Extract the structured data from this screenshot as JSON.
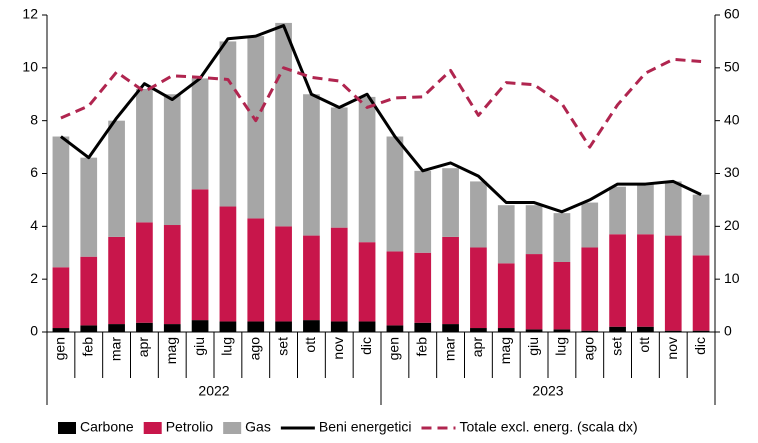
{
  "chart_data": {
    "type": "bar",
    "categories": [
      "gen",
      "feb",
      "mar",
      "apr",
      "mag",
      "giu",
      "lug",
      "ago",
      "set",
      "ott",
      "nov",
      "dic",
      "gen",
      "feb",
      "mar",
      "apr",
      "mag",
      "giu",
      "lug",
      "ago",
      "set",
      "ott",
      "nov",
      "dic"
    ],
    "groups": [
      "2022",
      "2023"
    ],
    "series": [
      {
        "name": "Carbone",
        "type": "bar",
        "color": "#000000",
        "values": [
          0.15,
          0.25,
          0.3,
          0.35,
          0.3,
          0.45,
          0.4,
          0.4,
          0.4,
          0.45,
          0.4,
          0.4,
          0.25,
          0.35,
          0.3,
          0.15,
          0.15,
          0.1,
          0.1,
          0.05,
          0.2,
          0.2,
          0.05,
          0.05
        ]
      },
      {
        "name": "Petrolio",
        "type": "bar",
        "color": "#c8164b",
        "values": [
          2.3,
          2.6,
          3.3,
          3.8,
          3.75,
          4.95,
          4.35,
          3.9,
          3.6,
          3.2,
          3.55,
          3.0,
          2.8,
          2.65,
          3.3,
          3.05,
          2.45,
          2.85,
          2.55,
          3.15,
          3.5,
          3.5,
          3.6,
          2.85
        ]
      },
      {
        "name": "Gas",
        "type": "bar",
        "color": "#a6a6a6",
        "values": [
          4.95,
          3.75,
          4.4,
          5.05,
          4.95,
          4.2,
          6.25,
          6.9,
          7.7,
          5.35,
          4.55,
          5.5,
          4.35,
          3.1,
          2.6,
          2.5,
          2.2,
          1.85,
          1.85,
          1.7,
          1.8,
          1.9,
          2.05,
          2.3
        ]
      },
      {
        "name": "Beni energetici",
        "type": "line",
        "color": "#000000",
        "values": [
          7.4,
          6.6,
          8.1,
          9.4,
          8.8,
          9.6,
          11.1,
          11.2,
          11.6,
          9.0,
          8.5,
          9.0,
          7.4,
          6.1,
          6.4,
          5.9,
          4.9,
          4.9,
          4.55,
          5.0,
          5.6,
          5.6,
          5.7,
          5.2
        ]
      },
      {
        "name": "Totale excl. energ. (scala dx)",
        "type": "line",
        "dashed": true,
        "axis": "y2",
        "color": "#b0254f",
        "values": [
          40.5,
          42.8,
          49.2,
          45.5,
          48.5,
          48.2,
          47.8,
          40,
          50,
          48.2,
          47.5,
          42.5,
          44.3,
          44.5,
          49.5,
          41,
          47.2,
          46.8,
          43.2,
          35,
          43,
          49,
          51.6,
          51.2
        ]
      }
    ],
    "ylim": [
      0,
      12
    ],
    "yticks": [
      0,
      2,
      4,
      6,
      8,
      10,
      12
    ],
    "y2lim": [
      0,
      60
    ],
    "y2ticks": [
      0,
      10,
      20,
      30,
      40,
      50,
      60
    ],
    "legend": "bottom"
  }
}
